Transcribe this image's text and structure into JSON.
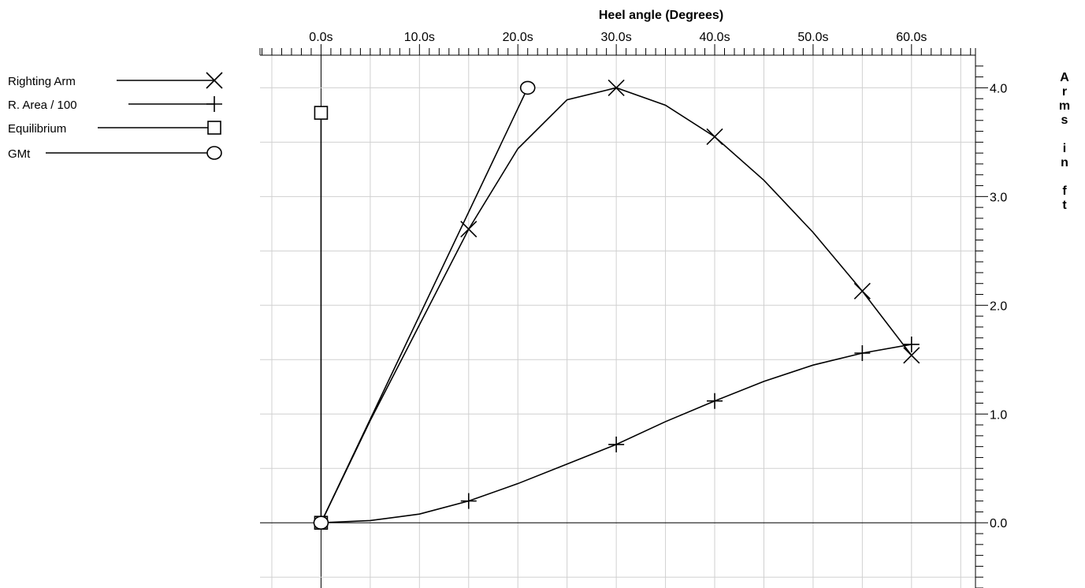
{
  "chart_data": {
    "type": "line",
    "xlabel": "Heel angle (Degrees)",
    "ylabel": "Arms in ft",
    "xlim": [
      -6.2,
      66.5
    ],
    "ylim": [
      -0.6,
      4.3
    ],
    "x_ticks": [
      0,
      10,
      20,
      30,
      40,
      50,
      60
    ],
    "x_tick_labels": [
      "0.0s",
      "10.0s",
      "20.0s",
      "30.0s",
      "40.0s",
      "50.0s",
      "60.0s"
    ],
    "y_ticks": [
      0,
      1,
      2,
      3,
      4
    ],
    "y_tick_labels": [
      "0.0",
      "1.0",
      "2.0",
      "3.0",
      "4.0"
    ],
    "x_axis_position": "top",
    "y_axis_position": "right",
    "grid": true,
    "legend_position": "left",
    "series": [
      {
        "name": "Righting Arm",
        "marker": "x",
        "points": [
          [
            0,
            0
          ],
          [
            5,
            0.94
          ],
          [
            10,
            1.82
          ],
          [
            15,
            2.7
          ],
          [
            20,
            3.44
          ],
          [
            25,
            3.89
          ],
          [
            30,
            4.0
          ],
          [
            35,
            3.84
          ],
          [
            40,
            3.55
          ],
          [
            45,
            3.15
          ],
          [
            50,
            2.67
          ],
          [
            55,
            2.13
          ],
          [
            60,
            1.54
          ]
        ],
        "marker_points": [
          [
            15,
            2.7
          ],
          [
            30,
            4.0
          ],
          [
            40,
            3.55
          ],
          [
            55,
            2.13
          ],
          [
            60,
            1.54
          ]
        ]
      },
      {
        "name": "R. Area / 100",
        "marker": "plus",
        "points": [
          [
            0,
            0
          ],
          [
            5,
            0.02
          ],
          [
            10,
            0.08
          ],
          [
            15,
            0.2
          ],
          [
            20,
            0.36
          ],
          [
            25,
            0.54
          ],
          [
            30,
            0.72
          ],
          [
            35,
            0.93
          ],
          [
            40,
            1.12
          ],
          [
            45,
            1.3
          ],
          [
            50,
            1.45
          ],
          [
            55,
            1.56
          ],
          [
            60,
            1.64
          ]
        ],
        "marker_points": [
          [
            15,
            0.2
          ],
          [
            30,
            0.72
          ],
          [
            40,
            1.12
          ],
          [
            55,
            1.56
          ],
          [
            60,
            1.64
          ]
        ]
      },
      {
        "name": "Equilibrium",
        "marker": "square",
        "points": [
          [
            0,
            0
          ],
          [
            0,
            3.77
          ]
        ],
        "marker_points": [
          [
            0,
            0
          ],
          [
            0,
            3.77
          ]
        ]
      },
      {
        "name": "GMt",
        "marker": "circle",
        "points": [
          [
            0,
            0
          ],
          [
            21,
            4.0
          ]
        ],
        "marker_points": [
          [
            0,
            0
          ],
          [
            21,
            4.0
          ]
        ]
      }
    ]
  }
}
